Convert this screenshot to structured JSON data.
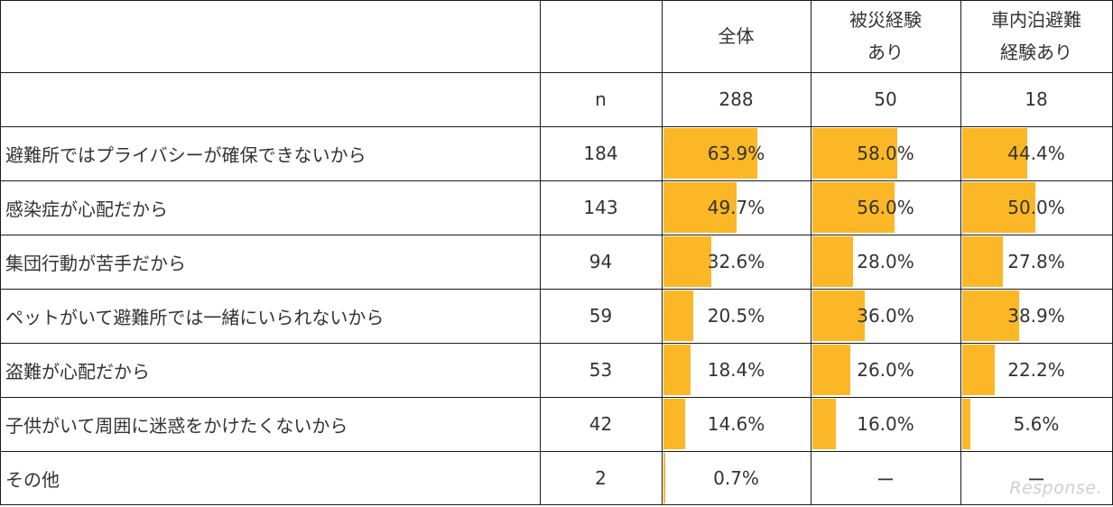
{
  "table": {
    "columns": [
      "全体",
      "被災経験あり",
      "車内泊避難経験あり"
    ],
    "n_label": "n",
    "n_values": [
      "288",
      "50",
      "18"
    ],
    "rows": [
      {
        "label": "避難所ではプライバシーが確保できないから",
        "count": "184",
        "cells": [
          "63.9%",
          "58.0%",
          "44.4%"
        ]
      },
      {
        "label": "感染症が心配だから",
        "count": "143",
        "cells": [
          "49.7%",
          "56.0%",
          "50.0%"
        ]
      },
      {
        "label": "集団行動が苦手だから",
        "count": "94",
        "cells": [
          "32.6%",
          "28.0%",
          "27.8%"
        ]
      },
      {
        "label": "ペットがいて避難所では一緒にいられないから",
        "count": "59",
        "cells": [
          "20.5%",
          "36.0%",
          "38.9%"
        ]
      },
      {
        "label": "盗難が心配だから",
        "count": "53",
        "cells": [
          "18.4%",
          "26.0%",
          "22.2%"
        ]
      },
      {
        "label": "子供がいて周囲に迷惑をかけたくないから",
        "count": "42",
        "cells": [
          "14.6%",
          "16.0%",
          "5.6%"
        ]
      },
      {
        "label": "その他",
        "count": "2",
        "cells": [
          "0.7%",
          "ー",
          "ー"
        ]
      }
    ]
  },
  "chart_data": {
    "type": "table",
    "columns": [
      "全体",
      "被災経験あり",
      "車内泊避難経験あり"
    ],
    "n": [
      288,
      50,
      18
    ],
    "categories": [
      "避難所ではプライバシーが確保できないから",
      "感染症が心配だから",
      "集団行動が苦手だから",
      "ペットがいて避難所では一緒にいられないから",
      "盗難が心配だから",
      "子供がいて周囲に迷惑をかけたくないから",
      "その他"
    ],
    "counts": [
      184,
      143,
      94,
      59,
      53,
      42,
      2
    ],
    "series": [
      {
        "name": "全体",
        "values": [
          63.9,
          49.7,
          32.6,
          20.5,
          18.4,
          14.6,
          0.7
        ]
      },
      {
        "name": "被災経験あり",
        "values": [
          58.0,
          56.0,
          28.0,
          36.0,
          26.0,
          16.0,
          null
        ]
      },
      {
        "name": "車内泊避難経験あり",
        "values": [
          44.4,
          50.0,
          27.8,
          38.9,
          22.2,
          5.6,
          null
        ]
      }
    ],
    "bar_color": "#FBB726",
    "bar_scale_max": 100
  },
  "watermark": "Response."
}
